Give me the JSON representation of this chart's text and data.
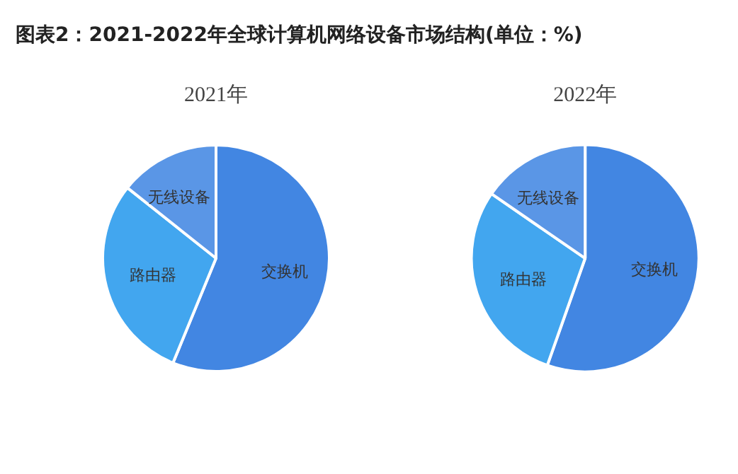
{
  "chart_data": [
    {
      "type": "pie",
      "title": "2021年",
      "annotations": [
        "图表2：2021-2022年全球计算机网络设备市场结构(单位：%)"
      ],
      "categories": [
        "交换机",
        "路由器",
        "无线设备"
      ],
      "values": [
        56.2,
        29.5,
        14.3
      ],
      "colors": [
        "#4286e2",
        "#42a6ef",
        "#5a96e6"
      ]
    },
    {
      "type": "pie",
      "title": "2022年",
      "categories": [
        "交换机",
        "路由器",
        "无线设备"
      ],
      "values": [
        55.4,
        29.2,
        15.4
      ],
      "colors": [
        "#4286e2",
        "#42a6ef",
        "#5a96e6"
      ]
    }
  ]
}
